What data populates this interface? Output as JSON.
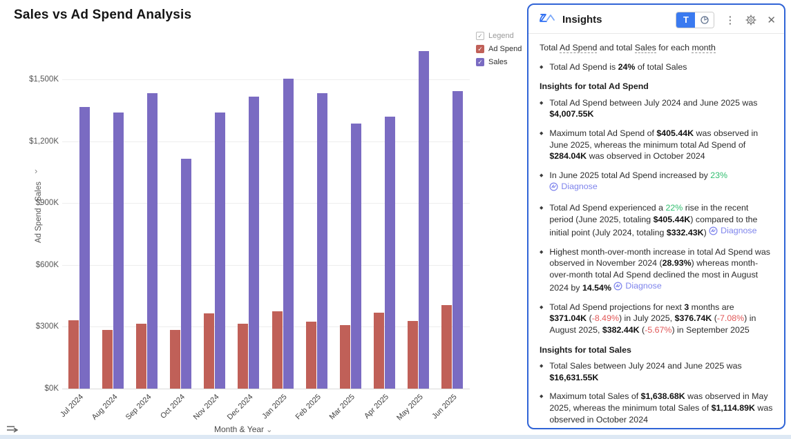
{
  "chart": {
    "title": "Sales vs Ad Spend Analysis",
    "y_axis_label": "Ad Spend , Sales",
    "y_axis_chevron": "›",
    "x_axis_label": "Month & Year",
    "x_axis_chevron": "⌄",
    "legend": {
      "toggle_label": "Legend",
      "check_glyph": "✓",
      "items": [
        {
          "label": "Ad Spend",
          "color": "#c06058"
        },
        {
          "label": "Sales",
          "color": "#7a6bc2"
        }
      ]
    }
  },
  "chart_data": {
    "type": "bar",
    "title": "Sales vs Ad Spend Analysis",
    "xlabel": "Month & Year",
    "ylabel": "Ad Spend , Sales",
    "categories": [
      "Jul 2024",
      "Aug 2024",
      "Sep 2024",
      "Oct 2024",
      "Nov 2024",
      "Dec 2024",
      "Jan 2025",
      "Feb 2025",
      "Mar 2025",
      "Apr 2025",
      "May 2025",
      "Jun 2025"
    ],
    "series": [
      {
        "name": "Ad Spend",
        "color": "#c06058",
        "values": [
          332.43,
          284.1,
          314.7,
          284.04,
          366.22,
          314.0,
          374.0,
          326.0,
          309.0,
          368.0,
          329.62,
          405.44
        ]
      },
      {
        "name": "Sales",
        "color": "#7a6bc2",
        "values": [
          1365,
          1340,
          1432,
          1114.89,
          1340,
          1415,
          1505,
          1432,
          1285,
          1320,
          1638.68,
          1443.98
        ]
      }
    ],
    "ylim": [
      0,
      1650
    ],
    "ytick_step": 300,
    "yticks": [
      0,
      300,
      600,
      900,
      1200,
      1500
    ],
    "ytick_labels": [
      "$0K",
      "$300K",
      "$600K",
      "$900K",
      "$1,200K",
      "$1,500K"
    ],
    "grid": true,
    "legend_position": "top-right",
    "units": "thousands of dollars (K)"
  },
  "insights_panel": {
    "title": "Insights",
    "toolbar": {
      "text_view_label": "T"
    },
    "intro": [
      {
        "t": "Total "
      },
      {
        "t": "Ad Spend",
        "c": "u"
      },
      {
        "t": " and total "
      },
      {
        "t": "Sales",
        "c": "u"
      },
      {
        "t": " for each "
      },
      {
        "t": "month",
        "c": "u"
      }
    ],
    "bullet_glyph": "◆",
    "blocks": [
      {
        "type": "bullet",
        "seg": [
          {
            "t": "Total Ad Spend is "
          },
          {
            "t": "24%",
            "c": "b"
          },
          {
            "t": " of total Sales"
          }
        ]
      },
      {
        "type": "header",
        "text": "Insights for total Ad Spend"
      },
      {
        "type": "bullet",
        "seg": [
          {
            "t": "Total Ad Spend between July 2024 and June 2025 was "
          },
          {
            "t": "$4,007.55K",
            "c": "b"
          }
        ]
      },
      {
        "type": "bullet",
        "seg": [
          {
            "t": "Maximum total Ad Spend of "
          },
          {
            "t": "$405.44K",
            "c": "b"
          },
          {
            "t": " was observed in June 2025, whereas the minimum total Ad Spend of "
          },
          {
            "t": "$284.04K",
            "c": "b"
          },
          {
            "t": " was observed in October 2024"
          }
        ]
      },
      {
        "type": "bullet",
        "seg": [
          {
            "t": "In June 2025 total Ad Spend increased by "
          },
          {
            "t": "23%",
            "c": "g"
          },
          {
            "br": true
          },
          {
            "t": "Diagnose",
            "c": "d"
          }
        ]
      },
      {
        "type": "bullet",
        "seg": [
          {
            "t": "Total Ad Spend experienced a "
          },
          {
            "t": "22%",
            "c": "g"
          },
          {
            "t": " rise in the recent period (June 2025, totaling "
          },
          {
            "t": "$405.44K",
            "c": "b"
          },
          {
            "t": ") compared to the initial point (July 2024, totaling "
          },
          {
            "t": "$332.43K",
            "c": "b"
          },
          {
            "t": ") "
          },
          {
            "t": "Diagnose",
            "c": "d"
          }
        ]
      },
      {
        "type": "bullet",
        "seg": [
          {
            "t": "Highest month-over-month increase in total Ad Spend was observed in November 2024 ("
          },
          {
            "t": "28.93%",
            "c": "b"
          },
          {
            "t": ") whereas month-over-month total Ad Spend declined the most in August 2024 by "
          },
          {
            "t": "14.54%",
            "c": "b"
          },
          {
            "t": " "
          },
          {
            "t": "Diagnose",
            "c": "d"
          }
        ]
      },
      {
        "type": "bullet",
        "seg": [
          {
            "t": "Total Ad Spend projections for next "
          },
          {
            "t": "3",
            "c": "b"
          },
          {
            "t": " months are "
          },
          {
            "t": "$371.04K",
            "c": "b"
          },
          {
            "t": " ("
          },
          {
            "t": "-8.49%",
            "c": "r"
          },
          {
            "t": ") in July 2025, "
          },
          {
            "t": "$376.74K",
            "c": "b"
          },
          {
            "t": " ("
          },
          {
            "t": "-7.08%",
            "c": "r"
          },
          {
            "t": ") in August 2025, "
          },
          {
            "t": "$382.44K",
            "c": "b"
          },
          {
            "t": " ("
          },
          {
            "t": "-5.67%",
            "c": "r"
          },
          {
            "t": ") in September 2025"
          }
        ]
      },
      {
        "type": "header",
        "text": "Insights for total Sales"
      },
      {
        "type": "bullet",
        "seg": [
          {
            "t": "Total Sales between July 2024 and June 2025 was "
          },
          {
            "t": "$16,631.55K",
            "c": "b"
          }
        ]
      },
      {
        "type": "bullet",
        "seg": [
          {
            "t": "Maximum total Sales of "
          },
          {
            "t": "$1,638.68K",
            "c": "b"
          },
          {
            "t": " was observed in May 2025, whereas the minimum total Sales of "
          },
          {
            "t": "$1,114.89K",
            "c": "b"
          },
          {
            "t": " was observed in October 2024"
          }
        ]
      }
    ]
  },
  "colors": {
    "ad_spend": "#c06058",
    "sales": "#7a6bc2",
    "panel_border": "#2f63d6",
    "active_toggle": "#3a7af0",
    "positive_green": "#2fbe6e",
    "negative_red": "#e15757",
    "diagnose_link": "#7e84ec"
  }
}
